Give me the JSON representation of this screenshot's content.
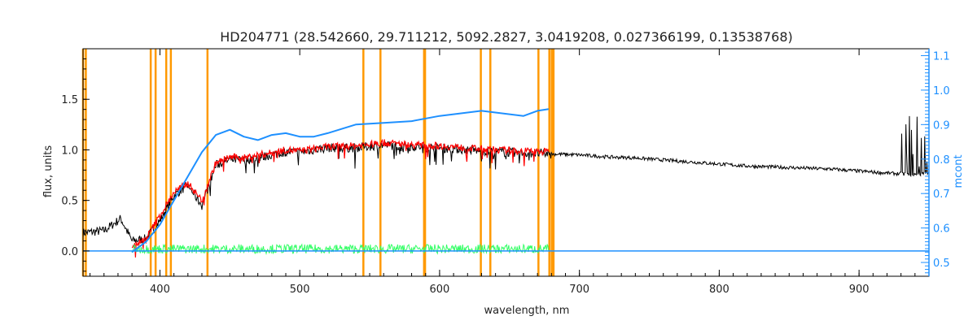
{
  "chart_data": {
    "type": "line",
    "title": "HD204771    (28.542660, 29.711212, 5092.2827, 3.0419208, 0.027366199, 0.13538768)",
    "xlabel": "wavelength, nm",
    "ylabel": "flux, units",
    "y2label": "mcont",
    "xlim": [
      345,
      950
    ],
    "ylim": [
      -0.25,
      2.0
    ],
    "y2lim": [
      0.46,
      1.12
    ],
    "x_ticks": [
      400,
      500,
      600,
      700,
      800,
      900
    ],
    "y_ticks": [
      0.0,
      0.5,
      1.0,
      1.5
    ],
    "y2_ticks": [
      0.5,
      0.6,
      0.7,
      0.8,
      0.9,
      1.0,
      1.1
    ],
    "grid": false,
    "colors": {
      "observed": "#000000",
      "model": "#ff0000",
      "residual": "#33ff66",
      "continuum": "#1e90ff",
      "mask": "#ff9900",
      "right_axis": "#1e90ff"
    },
    "mask_lines": [
      345,
      347,
      393.4,
      396.9,
      404.5,
      407.8,
      434.0,
      545.5,
      557.7,
      588.9,
      589.6,
      629.5,
      636.3,
      670.7,
      678.5,
      680.2,
      681.5
    ],
    "observed_spectrum": {
      "x": [
        345,
        360,
        372,
        380,
        390,
        400,
        410,
        420,
        430,
        440,
        450,
        460,
        470,
        480,
        490,
        500,
        520,
        540,
        560,
        580,
        600,
        620,
        640,
        660,
        680,
        700,
        720,
        740,
        760,
        780,
        800,
        820,
        840,
        860,
        880,
        900,
        920,
        935,
        940,
        950
      ],
      "y": [
        0.18,
        0.2,
        0.32,
        0.1,
        0.12,
        0.3,
        0.55,
        0.65,
        0.45,
        0.85,
        0.9,
        0.9,
        0.92,
        0.95,
        0.98,
        0.98,
        1.02,
        1.02,
        1.05,
        1.03,
        1.02,
        1.0,
        0.98,
        0.97,
        0.96,
        0.95,
        0.93,
        0.92,
        0.9,
        0.88,
        0.86,
        0.84,
        0.83,
        0.82,
        0.81,
        0.79,
        0.77,
        0.76,
        0.75,
        0.78
      ]
    },
    "model_spectrum": {
      "x": [
        380,
        390,
        400,
        410,
        420,
        430,
        440,
        450,
        460,
        470,
        480,
        490,
        500,
        520,
        540,
        560,
        580,
        600,
        620,
        640,
        660,
        678
      ],
      "y": [
        0.05,
        0.12,
        0.35,
        0.58,
        0.67,
        0.5,
        0.87,
        0.93,
        0.92,
        0.95,
        0.97,
        1.0,
        0.99,
        1.03,
        1.04,
        1.07,
        1.05,
        1.04,
        1.02,
        1.0,
        0.99,
        0.98
      ]
    },
    "residual": {
      "x_start": 380,
      "x_end": 678,
      "baseline": 0.02,
      "amplitude": 0.06
    },
    "continuum_mcont": {
      "x": [
        380,
        390,
        400,
        410,
        420,
        430,
        440,
        450,
        460,
        470,
        480,
        490,
        500,
        510,
        520,
        540,
        560,
        580,
        600,
        620,
        630,
        640,
        660,
        670,
        678
      ],
      "y": [
        0.53,
        0.56,
        0.61,
        0.68,
        0.75,
        0.82,
        0.87,
        0.885,
        0.865,
        0.855,
        0.87,
        0.875,
        0.865,
        0.865,
        0.875,
        0.9,
        0.905,
        0.91,
        0.925,
        0.935,
        0.94,
        0.935,
        0.925,
        0.94,
        0.945
      ]
    },
    "continuum_baseline": {
      "x_start": 678,
      "x_end": 950,
      "value": 0.0
    }
  }
}
